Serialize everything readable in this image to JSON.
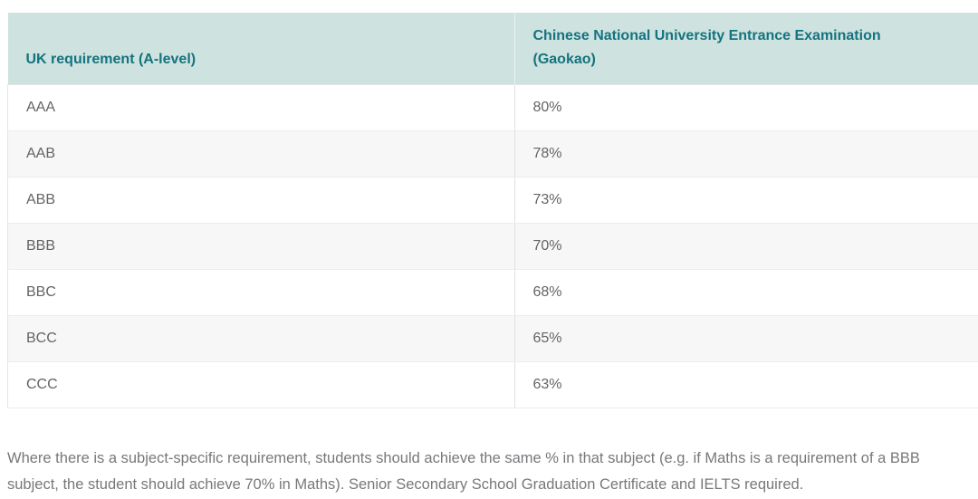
{
  "table": {
    "columns": [
      {
        "label": "UK requirement (A-level)"
      },
      {
        "label": "Chinese National University Entrance Examination (Gaokao)",
        "lines": [
          "Chinese National University Entrance Examination",
          "(Gaokao)"
        ]
      }
    ],
    "rows": [
      {
        "uk": "AAA",
        "gaokao": "80%"
      },
      {
        "uk": "AAB",
        "gaokao": "78%"
      },
      {
        "uk": "ABB",
        "gaokao": "73%"
      },
      {
        "uk": "BBB",
        "gaokao": "70%"
      },
      {
        "uk": "BBC",
        "gaokao": "68%"
      },
      {
        "uk": "BCC",
        "gaokao": "65%"
      },
      {
        "uk": "CCC",
        "gaokao": "63%"
      }
    ]
  },
  "footnote": "Where there is a subject-specific requirement, students should achieve the same % in that subject (e.g. if Maths is a requirement of a BBB subject, the student should achieve 70% in Maths). Senior Secondary School Graduation Certificate and IELTS required.",
  "colors": {
    "header_bg": "#cee3e0",
    "header_text": "#15737e",
    "row_alt_bg": "#f7f7f7",
    "cell_text": "#636466",
    "border": "#e6e6e6",
    "footnote_text": "#77787b"
  },
  "chart_data": {
    "type": "table",
    "title": "UK A-level requirement to Gaokao percentage equivalence",
    "categories": [
      "AAA",
      "AAB",
      "ABB",
      "BBB",
      "BBC",
      "BCC",
      "CCC"
    ],
    "values": [
      80,
      78,
      73,
      70,
      68,
      65,
      63
    ],
    "columns": [
      "UK requirement (A-level)",
      "Chinese National University Entrance Examination (Gaokao)"
    ]
  }
}
